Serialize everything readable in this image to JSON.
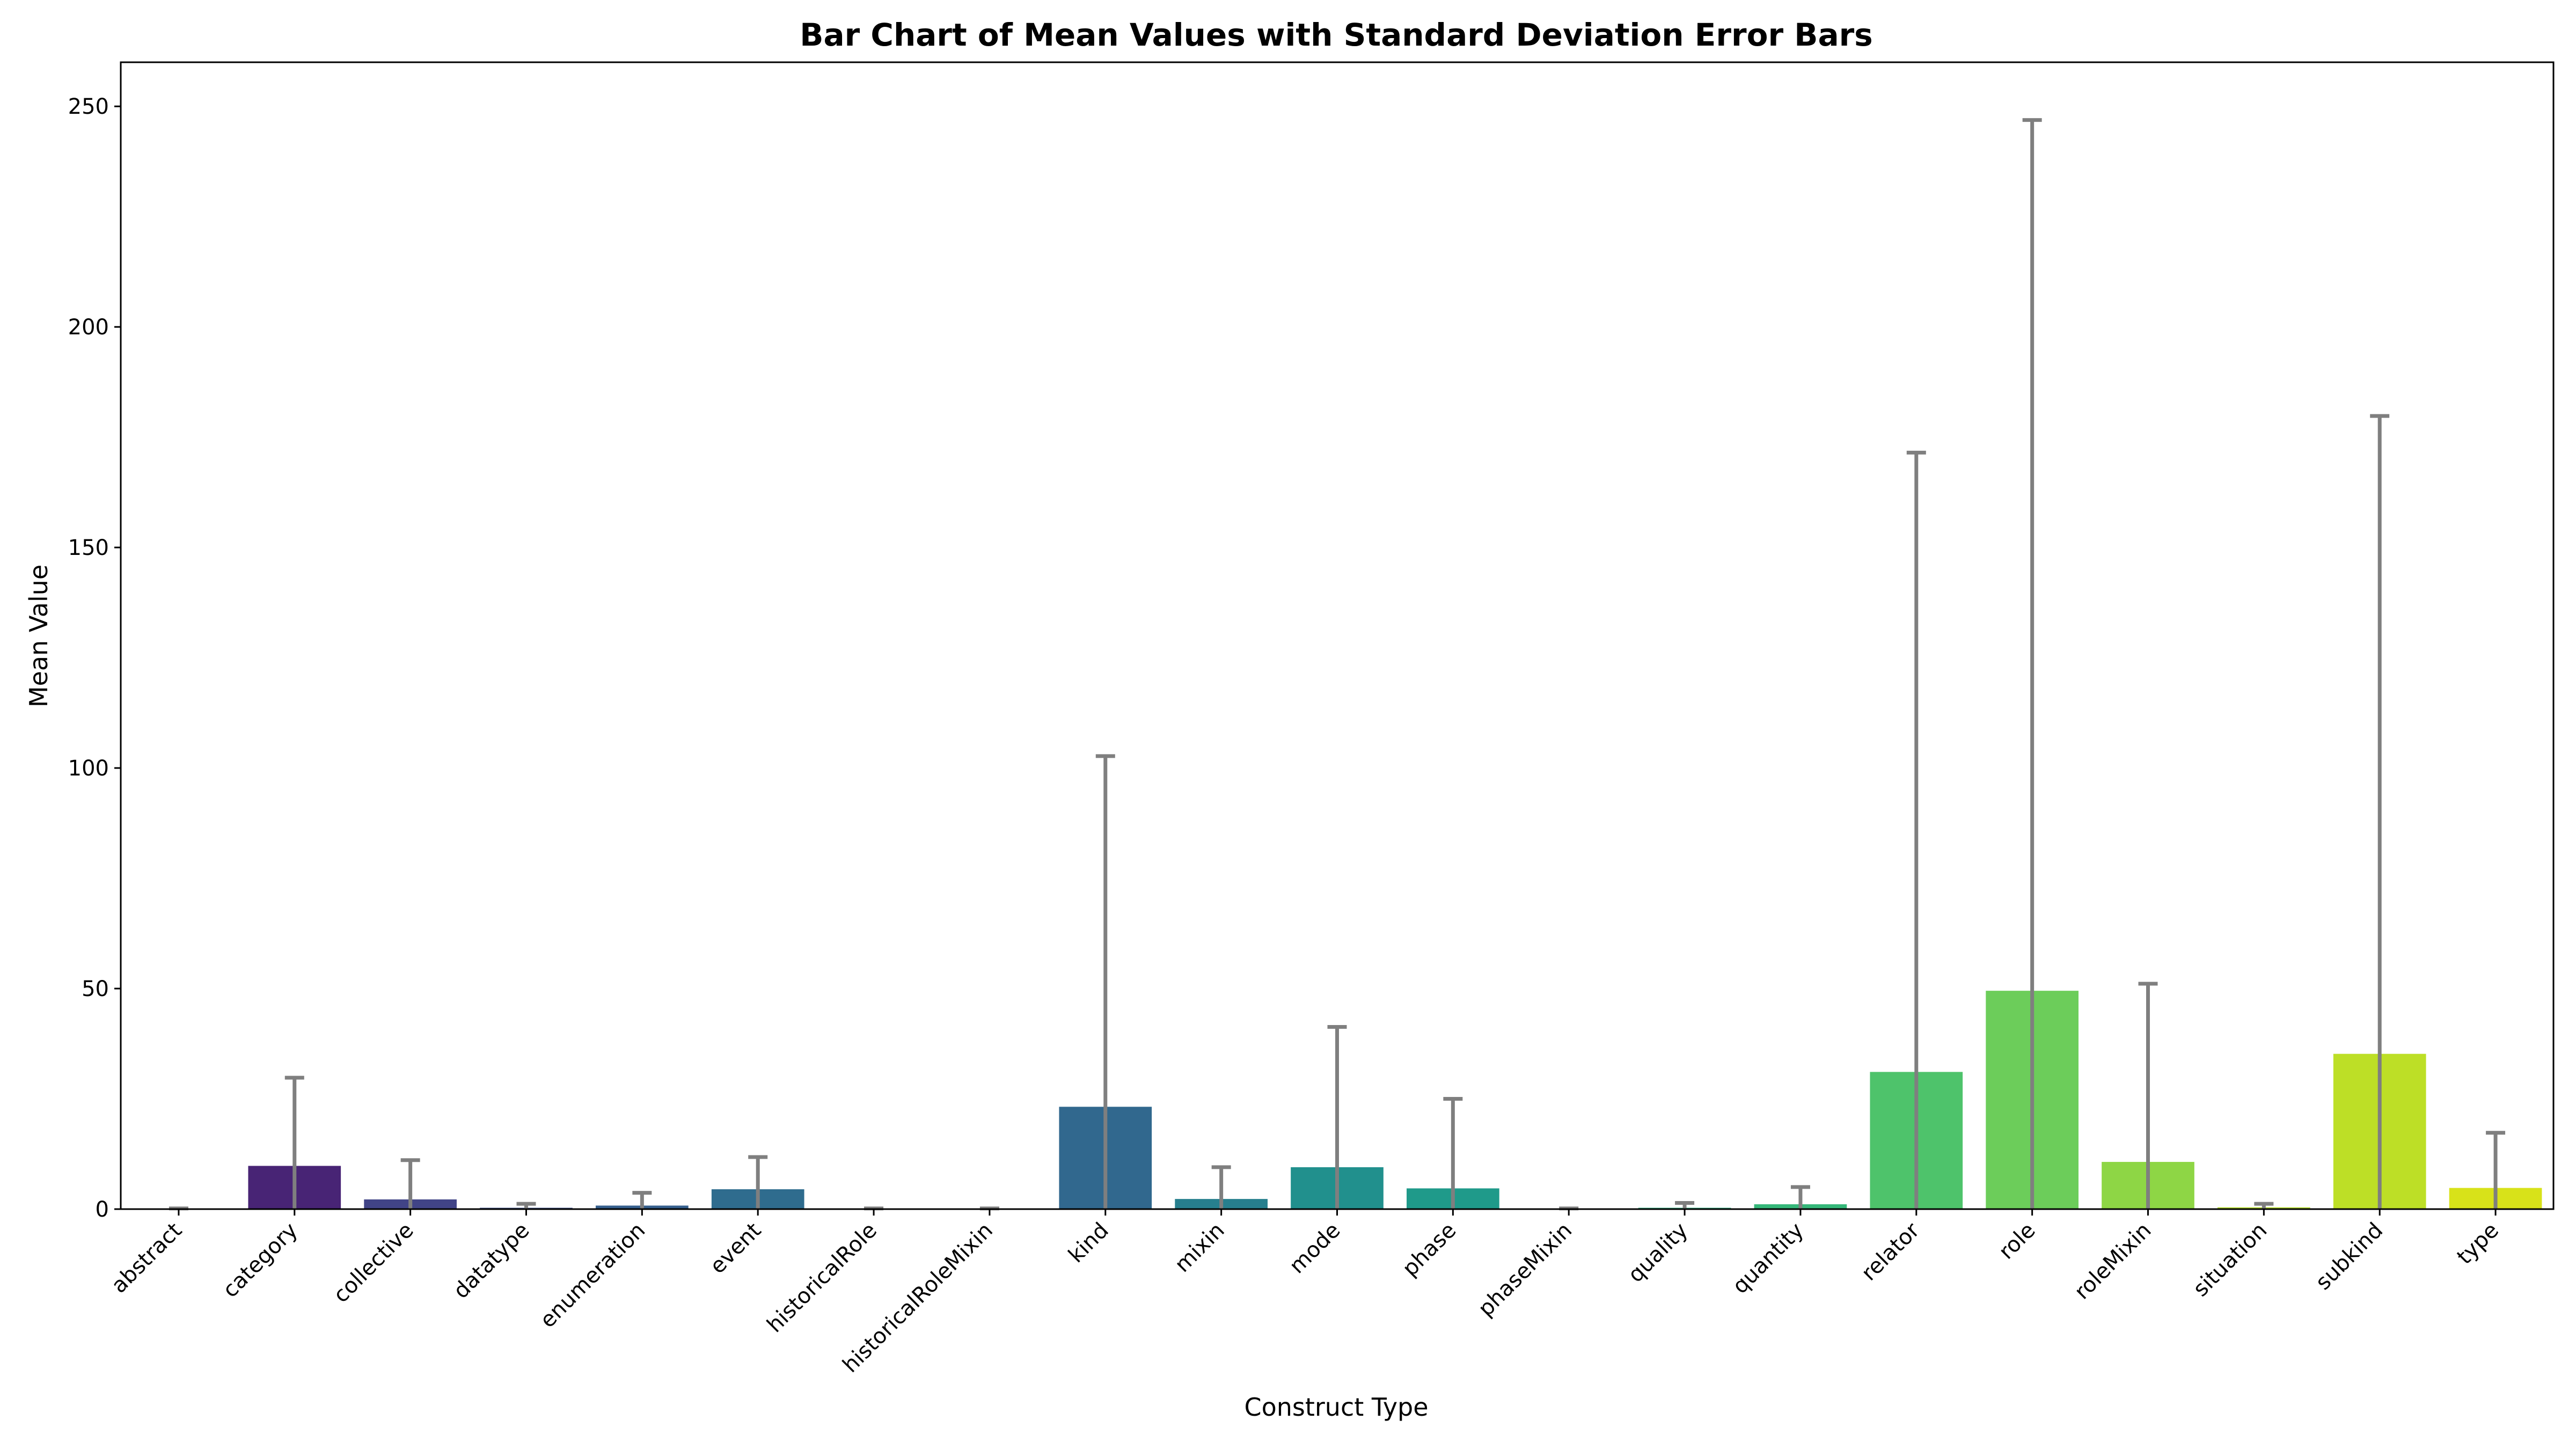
{
  "chart_data": {
    "type": "bar",
    "title": "Bar Chart of Mean Values with Standard Deviation Error Bars",
    "xlabel": "Construct Type",
    "ylabel": "Mean Value",
    "ylim": [
      0,
      260
    ],
    "yticks": [
      0,
      50,
      100,
      150,
      200,
      250
    ],
    "grid": false,
    "categories": [
      "abstract",
      "category",
      "collective",
      "datatype",
      "enumeration",
      "event",
      "historicalRole",
      "historicalRoleMixin",
      "kind",
      "mixin",
      "mode",
      "phase",
      "phaseMixin",
      "quality",
      "quantity",
      "relator",
      "role",
      "roleMixin",
      "situation",
      "subkind",
      "type"
    ],
    "values": [
      0.05,
      9.8,
      2.2,
      0.3,
      0.8,
      4.5,
      0.05,
      0.05,
      23.2,
      2.3,
      9.5,
      4.7,
      0.05,
      0.3,
      1.1,
      31.1,
      49.5,
      10.7,
      0.4,
      35.2,
      4.8
    ],
    "std": [
      0.1,
      20.0,
      8.9,
      0.9,
      2.9,
      7.3,
      0.1,
      0.1,
      79.5,
      7.2,
      31.8,
      20.3,
      0.1,
      1.1,
      3.9,
      140.4,
      197.4,
      40.4,
      0.8,
      144.6,
      12.5
    ],
    "colors": [
      "#440154",
      "#482475",
      "#414487",
      "#3b528b",
      "#355f8d",
      "#2f6c8e",
      "#2c728e",
      "#2a788e",
      "#31688e",
      "#277f8e",
      "#21908d",
      "#1f9a8a",
      "#22a785",
      "#2ab07f",
      "#35b779",
      "#4ec36b",
      "#6ccd5a",
      "#8ed645",
      "#b5de2b",
      "#bddf26",
      "#d8e219"
    ]
  }
}
